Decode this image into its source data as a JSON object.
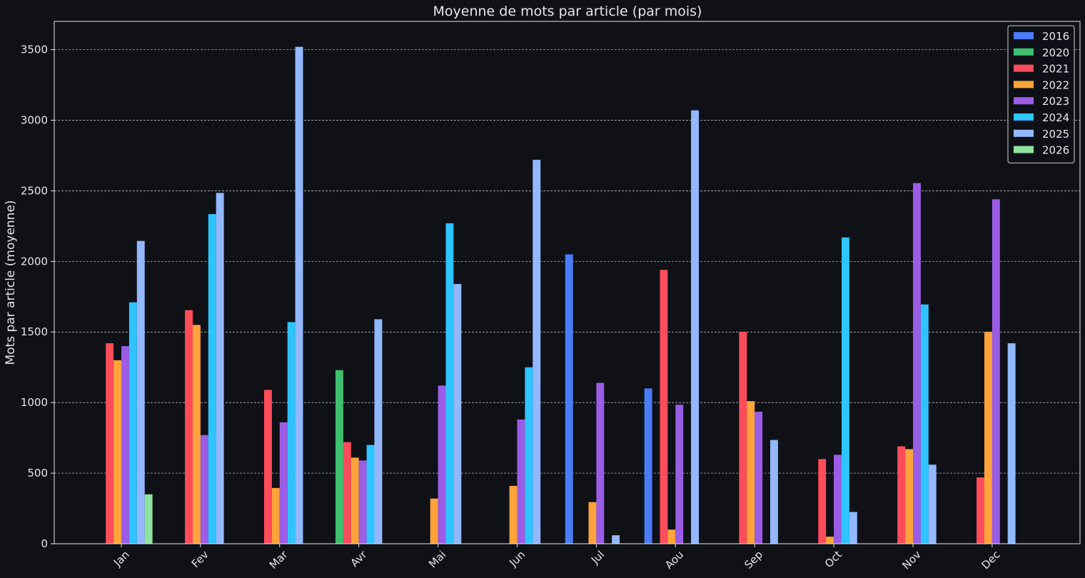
{
  "chart_data": {
    "type": "bar",
    "title": "Moyenne de mots par article (par mois)",
    "xlabel": "",
    "ylabel": "Mots par article (moyenne)",
    "ylim": [
      0,
      3700
    ],
    "yticks": [
      0,
      500,
      1000,
      1500,
      2000,
      2500,
      3000,
      3500
    ],
    "grid": "horizontal dashed",
    "legend_position": "top-right",
    "background": "#0f1117",
    "categories": [
      "Jan",
      "Fev",
      "Mar",
      "Avr",
      "Mai",
      "Jun",
      "Jul",
      "Aou",
      "Sep",
      "Oct",
      "Nov",
      "Dec"
    ],
    "series": [
      {
        "name": "2016",
        "color": "#4a7cf7",
        "values": [
          null,
          null,
          null,
          null,
          null,
          null,
          2050,
          1100,
          null,
          null,
          null,
          null
        ]
      },
      {
        "name": "2020",
        "color": "#3fbf6e",
        "values": [
          null,
          null,
          null,
          1230,
          null,
          null,
          null,
          null,
          null,
          null,
          null,
          null
        ]
      },
      {
        "name": "2021",
        "color": "#ff4c5b",
        "values": [
          1420,
          1655,
          1090,
          720,
          null,
          null,
          null,
          1940,
          1500,
          600,
          690,
          470
        ]
      },
      {
        "name": "2022",
        "color": "#ffa33a",
        "values": [
          1300,
          1550,
          395,
          610,
          320,
          410,
          295,
          100,
          1010,
          50,
          670,
          1500
        ]
      },
      {
        "name": "2023",
        "color": "#9b5de5",
        "values": [
          1400,
          770,
          860,
          590,
          1120,
          880,
          1140,
          985,
          935,
          630,
          2555,
          2440
        ]
      },
      {
        "name": "2024",
        "color": "#2ec4ff",
        "values": [
          1710,
          2335,
          1570,
          700,
          2270,
          1250,
          null,
          null,
          null,
          2170,
          1695,
          null
        ]
      },
      {
        "name": "2025",
        "color": "#93b8ff",
        "values": [
          2145,
          2485,
          3520,
          1590,
          1840,
          2720,
          60,
          3070,
          735,
          225,
          560,
          1420
        ]
      },
      {
        "name": "2026",
        "color": "#8fe3a0",
        "values": [
          350,
          null,
          null,
          null,
          null,
          null,
          null,
          null,
          null,
          null,
          null,
          null
        ]
      }
    ]
  }
}
